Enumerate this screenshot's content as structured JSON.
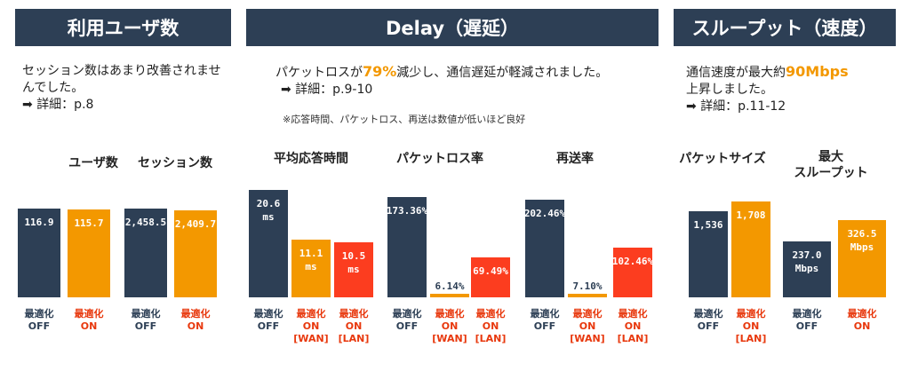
{
  "sections": [
    {
      "title": "利用ユーザ数",
      "desc_line1": "セッション数はあまり改善されませ",
      "desc_line2": "んでした。",
      "detail": "詳細：p.8"
    },
    {
      "title": "Delay（遅延）",
      "desc_pre": "パケットロスが",
      "desc_highlight": "79%",
      "desc_post": "減少し、通信遅延が軽減されました。",
      "detail": "詳細：p.9-10",
      "note": "※応答時間、パケットロス、再送は数値が低いほど良好"
    },
    {
      "title": "スループット（速度）",
      "desc_pre": "通信速度が最大約",
      "desc_highlight": "90Mbps",
      "desc_line2": "上昇しました。",
      "detail": "詳細：p.11-12"
    }
  ],
  "colors": {
    "off": "#2d3f55",
    "on_wan": "#f39800",
    "on_lan": "#fc3d1f",
    "header": "#2d3f55",
    "highlight": "#f39800"
  },
  "chart_data": [
    {
      "type": "bar",
      "title": "ユーザ数",
      "categories": [
        "最適化OFF",
        "最適化ON"
      ],
      "values": [
        116.9,
        115.7
      ],
      "labels": [
        "116.9",
        "115.7"
      ]
    },
    {
      "type": "bar",
      "title": "セッション数",
      "categories": [
        "最適化OFF",
        "最適化ON"
      ],
      "values": [
        2458.5,
        2409.7
      ],
      "labels": [
        "2,458.5",
        "2,409.7"
      ]
    },
    {
      "type": "bar",
      "title": "平均応答時間",
      "categories": [
        "最適化OFF",
        "最適化ON[WAN]",
        "最適化ON[LAN]"
      ],
      "values": [
        20.6,
        11.1,
        10.5
      ],
      "labels": [
        "20.6 ms",
        "11.1 ms",
        "10.5 ms"
      ]
    },
    {
      "type": "bar",
      "title": "パケットロス率",
      "categories": [
        "最適化OFF",
        "最適化ON[WAN]",
        "最適化ON[LAN]"
      ],
      "values": [
        173.36,
        6.14,
        69.49
      ],
      "labels": [
        "173.36%",
        "6.14%",
        "69.49%"
      ]
    },
    {
      "type": "bar",
      "title": "再送率",
      "categories": [
        "最適化OFF",
        "最適化ON[WAN]",
        "最適化ON[LAN]"
      ],
      "values": [
        202.46,
        7.1,
        102.46
      ],
      "labels": [
        "202.46%",
        "7.10%",
        "102.46%"
      ]
    },
    {
      "type": "bar",
      "title": "パケットサイズ",
      "categories": [
        "最適化OFF",
        "最適化ON[LAN]"
      ],
      "values": [
        1536,
        1708
      ],
      "labels": [
        "1,536",
        "1,708"
      ]
    },
    {
      "type": "bar",
      "title": "最大スループット",
      "categories": [
        "最適化OFF",
        "最適化ON"
      ],
      "values": [
        237.0,
        326.5
      ],
      "labels": [
        "237.0 Mbps",
        "326.5 Mbps"
      ]
    }
  ]
}
